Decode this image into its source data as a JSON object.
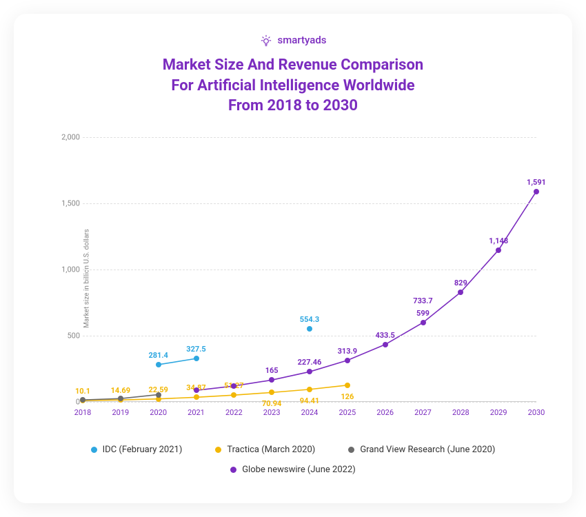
{
  "brand": {
    "name": "smartyads",
    "color": "#7b2cbf"
  },
  "title": {
    "line1": "Market Size And Revenue Comparison",
    "line2": "For Artificial Intelligence Worldwide",
    "line3": "From 2018 to 2030",
    "color": "#7b2cbf",
    "fontsize": 22
  },
  "chart": {
    "type": "line",
    "y_axis_label": "Market size in billion U.S. dollars",
    "background_color": "#ffffff",
    "grid_color": "#e0e0e0",
    "grid_dash": true,
    "xlim": [
      2018,
      2030
    ],
    "ylim": [
      0,
      2000
    ],
    "yticks": [
      0,
      500,
      1000,
      1500,
      2000
    ],
    "ytick_labels": [
      "0",
      "500",
      "1,000",
      "1,500",
      "2,000"
    ],
    "xticks": [
      2018,
      2019,
      2020,
      2021,
      2022,
      2023,
      2024,
      2025,
      2026,
      2027,
      2028,
      2029,
      2030
    ],
    "xtick_color": "#7b2cbf",
    "axis_font_color": "#888888",
    "point_radius": 4,
    "line_width": 1.6,
    "label_fontsize": 11,
    "series": [
      {
        "id": "idc",
        "name": "IDC (February 2021)",
        "color": "#2ea7e0",
        "points": [
          {
            "x": 2020,
            "y": 281.4,
            "label": "281.4"
          },
          {
            "x": 2021,
            "y": 327.5,
            "label": "327.5"
          },
          {
            "x": 2024,
            "y": 554.3,
            "label": "554.3"
          }
        ],
        "connect": [
          [
            0,
            1
          ]
        ]
      },
      {
        "id": "tractica",
        "name": "Tractica (March 2020)",
        "color": "#f2b705",
        "points": [
          {
            "x": 2018,
            "y": 10.1,
            "label": "10.1",
            "below": false
          },
          {
            "x": 2019,
            "y": 14.69,
            "label": "14.69",
            "below": false
          },
          {
            "x": 2020,
            "y": 22.59,
            "label": "22.59",
            "below": false
          },
          {
            "x": 2021,
            "y": 34.87,
            "label": "34.87",
            "below": false
          },
          {
            "x": 2022,
            "y": 51.27,
            "label": "51.27",
            "below": false
          },
          {
            "x": 2023,
            "y": 70.94,
            "label": "70.94",
            "below": true
          },
          {
            "x": 2024,
            "y": 94.41,
            "label": "94.41",
            "below": true
          },
          {
            "x": 2025,
            "y": 126,
            "label": "126",
            "below": true
          }
        ],
        "connect": "all"
      },
      {
        "id": "gvr",
        "name": "Grand View Research (June 2020)",
        "color": "#6b6b6b",
        "points": [
          {
            "x": 2018,
            "y": 15,
            "label": ""
          },
          {
            "x": 2019,
            "y": 25,
            "label": ""
          },
          {
            "x": 2020,
            "y": 55,
            "label": ""
          }
        ],
        "connect": "all"
      },
      {
        "id": "globe",
        "name": "Globe newswire (June 2022)",
        "color": "#7b2cbf",
        "points": [
          {
            "x": 2021,
            "y": 87,
            "label": ""
          },
          {
            "x": 2022,
            "y": 120,
            "label": ""
          },
          {
            "x": 2023,
            "y": 165,
            "label": "165"
          },
          {
            "x": 2024,
            "y": 227.46,
            "label": "227.46"
          },
          {
            "x": 2025,
            "y": 313.9,
            "label": "313.9"
          },
          {
            "x": 2026,
            "y": 433.5,
            "label": "433.5"
          },
          {
            "x": 2027,
            "y": 599,
            "label": "599",
            "alt_label": "733.7"
          },
          {
            "x": 2028,
            "y": 829,
            "label": "829"
          },
          {
            "x": 2029,
            "y": 1148,
            "label": "1,148"
          },
          {
            "x": 2030,
            "y": 1591,
            "label": "1,591"
          }
        ],
        "connect": "all"
      }
    ],
    "legend_order": [
      "idc",
      "tractica",
      "gvr",
      "globe"
    ]
  }
}
